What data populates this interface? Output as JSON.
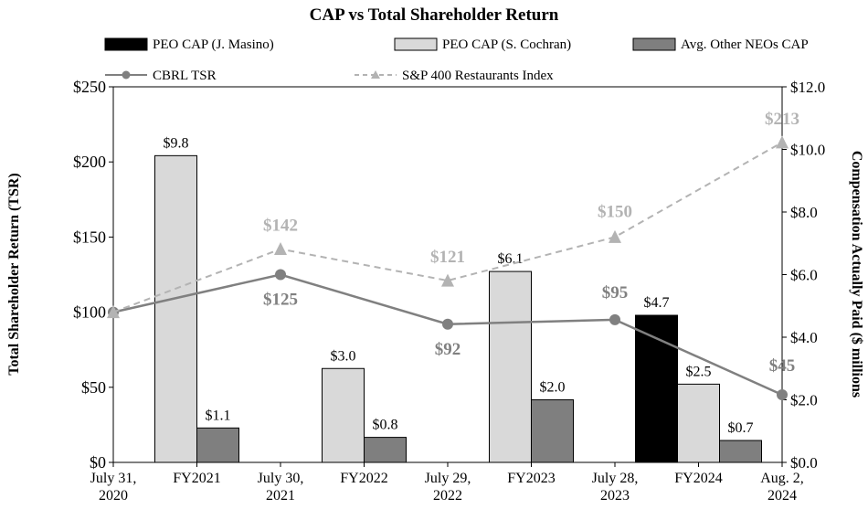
{
  "chart_data": {
    "type": "bar",
    "title": "CAP vs Total Shareholder Return",
    "ylabel": "Total Shareholder Return (TSR)",
    "y2label": "Compensation Actually Paid ($ millions",
    "ylim": [
      0,
      250
    ],
    "y2lim": [
      0,
      12
    ],
    "y_ticks": [
      "$0",
      "$50",
      "$100",
      "$150",
      "$200",
      "$250"
    ],
    "y_tick_values": [
      0,
      50,
      100,
      150,
      200,
      250
    ],
    "y2_ticks": [
      "$0.0",
      "$2.0",
      "$4.0",
      "$6.0",
      "$8.0",
      "$10.0",
      "$12.0"
    ],
    "y2_tick_values": [
      0,
      2,
      4,
      6,
      8,
      10,
      12
    ],
    "x_ticks": [
      [
        "July 31,",
        "2020"
      ],
      [
        "FY2021"
      ],
      [
        "July 30,",
        "2021"
      ],
      [
        "FY2022"
      ],
      [
        "July 29,",
        "2022"
      ],
      [
        "FY2023"
      ],
      [
        "July 28,",
        "2023"
      ],
      [
        "FY2024"
      ],
      [
        "Aug. 2,",
        "2024"
      ]
    ],
    "bar_categories": [
      "FY2021",
      "FY2022",
      "FY2023",
      "FY2024"
    ],
    "bar_series": [
      {
        "name": "PEO CAP (J. Masino)",
        "color": "#000000",
        "values": [
          null,
          null,
          null,
          4.7
        ],
        "labels": [
          "",
          "",
          "",
          "$4.7"
        ]
      },
      {
        "name": "PEO CAP (S. Cochran)",
        "color": "#d9d9d9",
        "values": [
          9.8,
          3.0,
          6.1,
          2.5
        ],
        "labels": [
          "$9.8",
          "$3.0",
          "$6.1",
          "$2.5"
        ]
      },
      {
        "name": "Avg. Other NEOs CAP",
        "color": "#7f7f7f",
        "values": [
          1.1,
          0.8,
          2.0,
          0.7
        ],
        "labels": [
          "$1.1",
          "$0.8",
          "$2.0",
          "$0.7"
        ]
      }
    ],
    "line_dates": [
      "July 31, 2020",
      "July 30, 2021",
      "July 29, 2022",
      "July 28, 2023",
      "Aug. 2, 2024"
    ],
    "line_series": [
      {
        "name": "CBRL TSR",
        "color": "#808080",
        "style": "solid",
        "marker": "circle",
        "values": [
          100,
          125,
          92,
          95,
          45
        ],
        "labels": [
          "",
          "$125",
          "$92",
          "$95",
          "$45"
        ]
      },
      {
        "name": "S&P 400 Restaurants Index",
        "color": "#b3b3b3",
        "style": "dashed",
        "marker": "triangle",
        "values": [
          100,
          142,
          121,
          150,
          213
        ],
        "labels": [
          "",
          "$142",
          "$121",
          "$150",
          "$213"
        ]
      }
    ],
    "legend_position": "top",
    "grid": false
  }
}
